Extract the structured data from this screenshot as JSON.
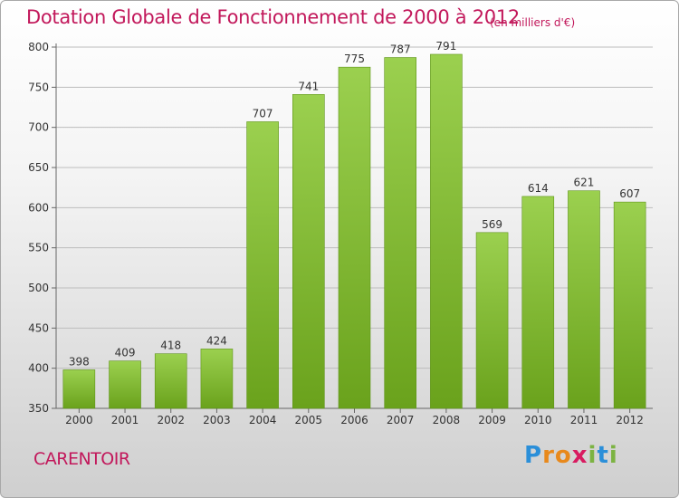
{
  "title": "Dotation Globale de Fonctionnement de 2000 à 2012",
  "subtitle": "(en milliers d'€)",
  "commune": "CARENTOIR",
  "logo": {
    "text": "Proxiti",
    "letters": [
      "P",
      "r",
      "o",
      "x",
      "i",
      "t",
      "i"
    ]
  },
  "colors": {
    "title": "#c2185b",
    "bar_top": "#9bd04f",
    "bar_bottom": "#6aa21c",
    "grid": "#bdbdbd"
  },
  "chart_data": {
    "type": "bar",
    "title": "Dotation Globale de Fonctionnement de 2000 à 2012",
    "subtitle": "(en milliers d'€)",
    "categories": [
      "2000",
      "2001",
      "2002",
      "2003",
      "2004",
      "2005",
      "2006",
      "2007",
      "2008",
      "2009",
      "2010",
      "2011",
      "2012"
    ],
    "values": [
      398,
      409,
      418,
      424,
      707,
      741,
      775,
      787,
      791,
      569,
      614,
      621,
      607
    ],
    "ylim": [
      350,
      800
    ],
    "yticks": [
      350,
      400,
      450,
      500,
      550,
      600,
      650,
      700,
      750,
      800
    ],
    "grid": true,
    "xlabel": "",
    "ylabel": ""
  }
}
